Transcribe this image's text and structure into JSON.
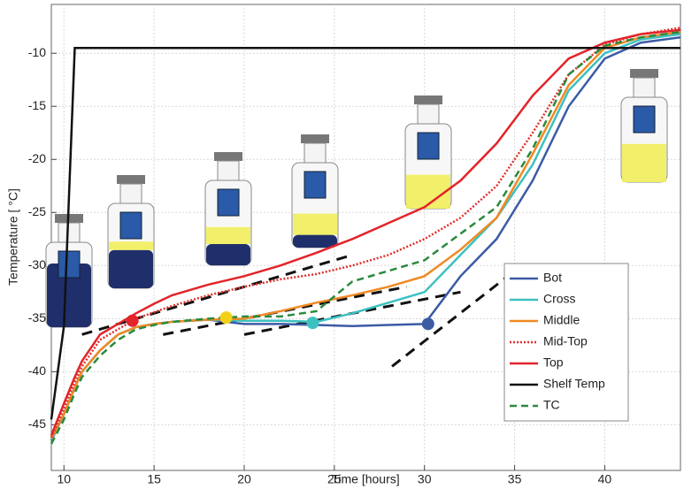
{
  "chart_data": {
    "type": "line",
    "xlabel": "Time [hours]",
    "ylabel": "Temperature [ °C]",
    "x": [
      9.3,
      10,
      10.6,
      11,
      12,
      13,
      14,
      15,
      16,
      18,
      20,
      22,
      24,
      26,
      28,
      30,
      32,
      34,
      36,
      38,
      40,
      42,
      44.2
    ],
    "xlim": [
      9.3,
      44.2
    ],
    "ylim": [
      -49.3,
      -5.4
    ],
    "xticks": [
      10,
      15,
      20,
      25,
      30,
      35,
      40
    ],
    "yticks": [
      -45,
      -40,
      -35,
      -30,
      -25,
      -20,
      -15,
      -10
    ],
    "grid": true,
    "legend": "lower right",
    "series": [
      {
        "name": "Bot",
        "color": "#3b5ba5",
        "dash": "solid",
        "values": [
          -46.5,
          -44,
          -41.5,
          -40,
          -38,
          -36.5,
          -35.8,
          -35.5,
          -35.3,
          -35.1,
          -35.5,
          -35.5,
          -35.6,
          -35.7,
          -35.6,
          -35.5,
          -31,
          -27.5,
          -22,
          -15,
          -10.5,
          -9,
          -8.5
        ]
      },
      {
        "name": "Cross",
        "color": "#3cc1c0",
        "dash": "solid",
        "values": [
          -46.4,
          -44,
          -41.5,
          -40,
          -38,
          -36.5,
          -35.8,
          -35.5,
          -35.3,
          -35.1,
          -35.2,
          -35.2,
          -35.3,
          -34.5,
          -33.5,
          -32.5,
          -29,
          -25.5,
          -20.5,
          -13.5,
          -10,
          -8.7,
          -8.2
        ]
      },
      {
        "name": "Middle",
        "color": "#f08a24",
        "dash": "solid",
        "values": [
          -46.3,
          -44,
          -41.5,
          -40,
          -38,
          -36.5,
          -35.8,
          -35.5,
          -35.3,
          -35.1,
          -35,
          -34.3,
          -33.5,
          -32.8,
          -32,
          -31,
          -28.5,
          -25.5,
          -19.5,
          -13,
          -9.5,
          -8.5,
          -8
        ]
      },
      {
        "name": "Mid-Top",
        "color": "#e0302b",
        "dash": "dotted",
        "values": [
          -46.2,
          -43.5,
          -41,
          -39.5,
          -37,
          -36,
          -35,
          -34.4,
          -33.8,
          -32.8,
          -32,
          -31.3,
          -30.8,
          -30,
          -29,
          -27.5,
          -25.5,
          -22.5,
          -17.5,
          -12,
          -9.2,
          -8.2,
          -7.6
        ]
      },
      {
        "name": "Top",
        "color": "#e3242b",
        "dash": "solid",
        "values": [
          -46,
          -43,
          -40.5,
          -39,
          -36.5,
          -35.5,
          -34.5,
          -33.6,
          -32.8,
          -31.8,
          -31,
          -30,
          -28.8,
          -27.5,
          -26,
          -24.5,
          -22,
          -18.5,
          -14,
          -10.5,
          -9,
          -8.2,
          -7.8
        ]
      },
      {
        "name": "Shelf Temp",
        "color": "#111111",
        "dash": "solid",
        "values": [
          -44.5,
          -35.7,
          -9.5,
          -9.5,
          -9.5,
          -9.5,
          -9.5,
          -9.5,
          -9.5,
          -9.5,
          -9.5,
          -9.5,
          -9.5,
          -9.5,
          -9.5,
          -9.5,
          -9.5,
          -9.5,
          -9.5,
          -9.5,
          -9.5,
          -9.5,
          -9.5
        ]
      },
      {
        "name": "TC",
        "color": "#2a8a3e",
        "dash": "dashed",
        "values": [
          -46.8,
          -44.5,
          -42,
          -40.5,
          -38.5,
          -37,
          -36,
          -35.6,
          -35.3,
          -35,
          -34.8,
          -34.8,
          -34.3,
          -31.5,
          -30.5,
          -29.5,
          -27,
          -24.5,
          -19,
          -12,
          -9.3,
          -8.5,
          -8
        ]
      }
    ],
    "fit_lines": [
      {
        "x": [
          11,
          26
        ],
        "y": [
          -36.5,
          -29
        ]
      },
      {
        "x": [
          15.5,
          29
        ],
        "y": [
          -36.5,
          -32
        ]
      },
      {
        "x": [
          20,
          32
        ],
        "y": [
          -36.5,
          -32.5
        ]
      },
      {
        "x": [
          28.2,
          35
        ],
        "y": [
          -39.5,
          -30.5
        ]
      }
    ],
    "points": [
      {
        "x": 13.8,
        "y": -35.2,
        "color": "#e3242b"
      },
      {
        "x": 19,
        "y": -34.9,
        "color": "#f5d018"
      },
      {
        "x": 23.8,
        "y": -35.4,
        "color": "#3cc1c0"
      },
      {
        "x": 30.2,
        "y": -35.5,
        "color": "#3b5ba5"
      }
    ]
  }
}
